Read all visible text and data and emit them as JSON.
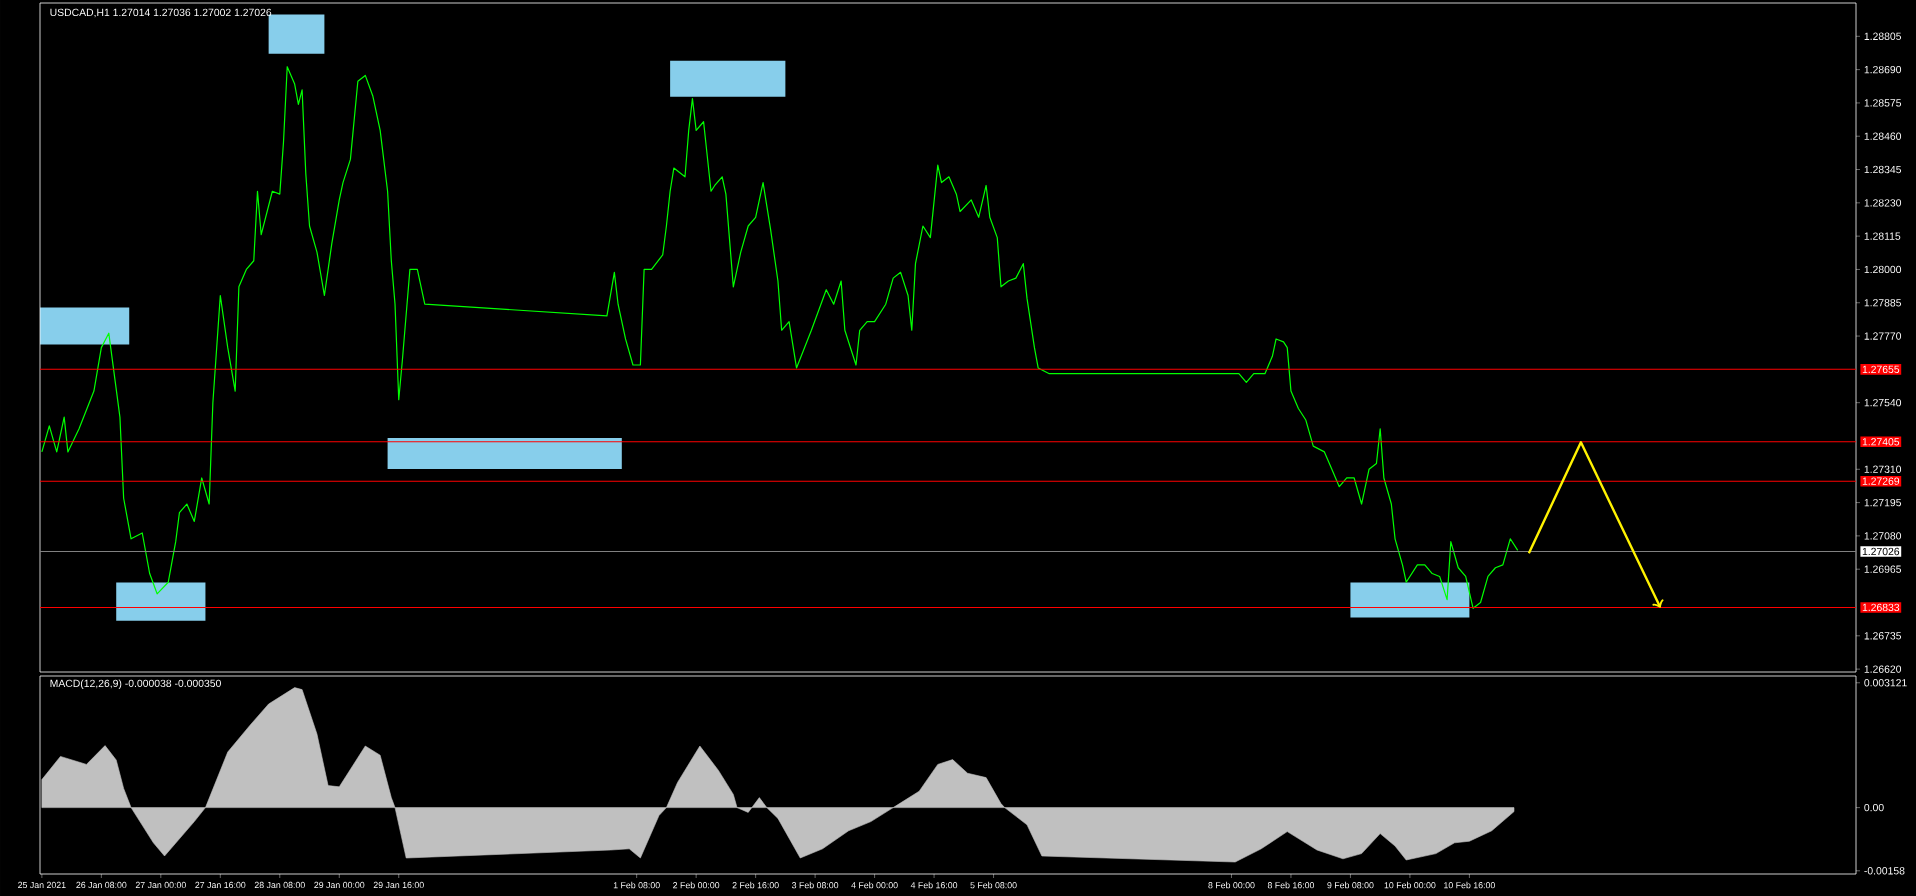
{
  "chart_data": [
    {
      "type": "line",
      "title": "USDCAD,H1  1.27014 1.27036 1.27002 1.27026",
      "color": "#00ff00",
      "tick_labels": "y",
      "xlim": [
        "2021-01-25T15:30",
        "2021-02-15T00:00"
      ],
      "ylim": [
        1.2661,
        1.2892
      ],
      "x": [
        "2021-01-25T16:00",
        "2021-01-25T18:00",
        "2021-01-25T20:00",
        "2021-01-25T22:00",
        "2021-01-25T23:00",
        "2021-01-26T02:00",
        "2021-01-26T06:00",
        "2021-01-26T08:00",
        "2021-01-26T10:00",
        "2021-01-26T13:00",
        "2021-01-26T14:00",
        "2021-01-26T16:00",
        "2021-01-26T19:00",
        "2021-01-26T21:00",
        "2021-01-26T23:00",
        "2021-01-27T02:00",
        "2021-01-27T04:00",
        "2021-01-27T05:00",
        "2021-01-27T07:00",
        "2021-01-27T09:00",
        "2021-01-27T11:00",
        "2021-01-27T13:00",
        "2021-01-27T14:00",
        "2021-01-27T16:00",
        "2021-01-27T18:00",
        "2021-01-27T20:00",
        "2021-01-27T21:00",
        "2021-01-27T23:00",
        "2021-01-28T01:00",
        "2021-01-28T02:00",
        "2021-01-28T03:00",
        "2021-01-28T06:00",
        "2021-01-28T08:00",
        "2021-01-28T09:00",
        "2021-01-28T10:00",
        "2021-01-28T12:00",
        "2021-01-28T13:00",
        "2021-01-28T14:00",
        "2021-01-28T15:00",
        "2021-01-28T16:00",
        "2021-01-28T18:00",
        "2021-01-28T20:00",
        "2021-01-28T22:00",
        "2021-01-29T00:00",
        "2021-01-29T01:00",
        "2021-01-29T03:00",
        "2021-01-29T05:00",
        "2021-01-29T07:00",
        "2021-01-29T09:00",
        "2021-01-29T11:00",
        "2021-01-29T13:00",
        "2021-01-29T14:00",
        "2021-01-29T15:00",
        "2021-01-29T16:00",
        "2021-01-29T17:00",
        "2021-01-29T19:00",
        "2021-01-29T21:00",
        "2021-01-29T23:00",
        "2021-02-01T00:00",
        "2021-02-01T02:00",
        "2021-02-01T03:00",
        "2021-02-01T05:00",
        "2021-02-01T07:00",
        "2021-02-01T09:00",
        "2021-02-01T10:00",
        "2021-02-01T12:00",
        "2021-02-01T15:00",
        "2021-02-01T16:00",
        "2021-02-01T17:00",
        "2021-02-01T18:00",
        "2021-02-01T21:00",
        "2021-02-01T22:00",
        "2021-02-01T23:00",
        "2021-02-02T00:00",
        "2021-02-02T02:00",
        "2021-02-02T04:00",
        "2021-02-02T05:00",
        "2021-02-02T07:00",
        "2021-02-02T08:00",
        "2021-02-02T10:00",
        "2021-02-02T12:00",
        "2021-02-02T14:00",
        "2021-02-02T16:00",
        "2021-02-02T18:00",
        "2021-02-02T20:00",
        "2021-02-02T22:00",
        "2021-02-02T23:00",
        "2021-02-03T01:00",
        "2021-02-03T03:00",
        "2021-02-03T07:00",
        "2021-02-03T11:00",
        "2021-02-03T13:00",
        "2021-02-03T15:00",
        "2021-02-03T16:00",
        "2021-02-03T19:00",
        "2021-02-03T20:00",
        "2021-02-03T22:00",
        "2021-02-04T00:00",
        "2021-02-04T03:00",
        "2021-02-04T05:00",
        "2021-02-04T07:00",
        "2021-02-04T09:00",
        "2021-02-04T10:00",
        "2021-02-04T11:00",
        "2021-02-04T13:00",
        "2021-02-04T15:00",
        "2021-02-04T17:00",
        "2021-02-04T18:00",
        "2021-02-04T20:00",
        "2021-02-04T22:00",
        "2021-02-04T23:00",
        "2021-02-05T02:00",
        "2021-02-05T04:00",
        "2021-02-05T06:00",
        "2021-02-05T07:00",
        "2021-02-05T09:00",
        "2021-02-05T10:00",
        "2021-02-05T12:00",
        "2021-02-05T14:00",
        "2021-02-05T16:00",
        "2021-02-05T17:00",
        "2021-02-05T19:00",
        "2021-02-05T20:00",
        "2021-02-05T23:00",
        "2021-02-08T02:00",
        "2021-02-08T04:00",
        "2021-02-08T06:00",
        "2021-02-08T09:00",
        "2021-02-08T11:00",
        "2021-02-08T12:00",
        "2021-02-08T14:00",
        "2021-02-08T15:00",
        "2021-02-08T16:00",
        "2021-02-08T18:00",
        "2021-02-08T20:00",
        "2021-02-08T22:00",
        "2021-02-09T01:00",
        "2021-02-09T03:00",
        "2021-02-09T05:00",
        "2021-02-09T07:00",
        "2021-02-09T09:00",
        "2021-02-09T11:00",
        "2021-02-09T13:00",
        "2021-02-09T15:00",
        "2021-02-09T16:00",
        "2021-02-09T17:00",
        "2021-02-09T19:00",
        "2021-02-09T20:00",
        "2021-02-09T22:00",
        "2021-02-09T23:00",
        "2021-02-10T02:00",
        "2021-02-10T04:00",
        "2021-02-10T06:00",
        "2021-02-10T08:00",
        "2021-02-10T10:00",
        "2021-02-10T11:00",
        "2021-02-10T13:00",
        "2021-02-10T15:00",
        "2021-02-10T17:00",
        "2021-02-10T19:00",
        "2021-02-10T21:00",
        "2021-02-10T23:00",
        "2021-02-11T01:00",
        "2021-02-11T03:00",
        "2021-02-11T05:00"
      ],
      "values": [
        1.2737,
        1.2746,
        1.2737,
        1.2749,
        1.2737,
        1.2745,
        1.2758,
        1.2773,
        1.2778,
        1.2749,
        1.2721,
        1.2707,
        1.2709,
        1.2695,
        1.2688,
        1.2692,
        1.2706,
        1.2716,
        1.2719,
        1.2713,
        1.2728,
        1.2719,
        1.2754,
        1.2791,
        1.2773,
        1.2758,
        1.2794,
        1.28,
        1.2803,
        1.2827,
        1.2812,
        1.2827,
        1.2826,
        1.2844,
        1.287,
        1.2864,
        1.2857,
        1.2862,
        1.2833,
        1.2815,
        1.2806,
        1.2791,
        1.2809,
        1.2824,
        1.283,
        1.2838,
        1.2865,
        1.2867,
        1.286,
        1.2848,
        1.2827,
        1.2803,
        1.2788,
        1.2755,
        1.2769,
        1.28,
        1.28,
        1.2788,
        1.2784,
        1.2799,
        1.2788,
        1.2776,
        1.2767,
        1.2767,
        1.28,
        1.28,
        1.2805,
        1.2815,
        1.2827,
        1.2835,
        1.2832,
        1.2848,
        1.2859,
        1.2848,
        1.2851,
        1.2827,
        1.2829,
        1.2832,
        1.2826,
        1.2794,
        1.2806,
        1.2815,
        1.2818,
        1.283,
        1.2814,
        1.2796,
        1.2779,
        1.2782,
        1.2766,
        1.2779,
        1.2793,
        1.2788,
        1.2796,
        1.2779,
        1.2767,
        1.2779,
        1.2782,
        1.2782,
        1.2788,
        1.2797,
        1.2799,
        1.2791,
        1.2779,
        1.2802,
        1.2815,
        1.2811,
        1.2836,
        1.283,
        1.2832,
        1.2826,
        1.282,
        1.2824,
        1.2818,
        1.2829,
        1.2818,
        1.2811,
        1.2794,
        1.2796,
        1.2797,
        1.2802,
        1.279,
        1.2773,
        1.2766,
        1.2764,
        1.2764,
        1.2761,
        1.2764,
        1.2764,
        1.277,
        1.2776,
        1.2775,
        1.2773,
        1.2758,
        1.2752,
        1.2748,
        1.2739,
        1.2737,
        1.2731,
        1.2725,
        1.2728,
        1.2728,
        1.2719,
        1.2731,
        1.2733,
        1.2745,
        1.2728,
        1.2719,
        1.2707,
        1.2698,
        1.2692,
        1.2698,
        1.2698,
        1.2695,
        1.2694,
        1.2686,
        1.2706,
        1.2697,
        1.2694,
        1.2683,
        1.2685,
        1.2694,
        1.2697,
        1.2698,
        1.2707,
        1.2703
      ],
      "yticks": [
        {
          "value": 1.28805,
          "label": "1.28805"
        },
        {
          "value": 1.2869,
          "label": "1.28690"
        },
        {
          "value": 1.28575,
          "label": "1.28575"
        },
        {
          "value": 1.2846,
          "label": "1.28460"
        },
        {
          "value": 1.28345,
          "label": "1.28345"
        },
        {
          "value": 1.2823,
          "label": "1.28230"
        },
        {
          "value": 1.28115,
          "label": "1.28115"
        },
        {
          "value": 1.28,
          "label": "1.28000"
        },
        {
          "value": 1.27885,
          "label": "1.27885"
        },
        {
          "value": 1.2777,
          "label": "1.27770"
        },
        {
          "value": 1.2754,
          "label": "1.27540"
        },
        {
          "value": 1.2731,
          "label": "1.27310"
        },
        {
          "value": 1.27195,
          "label": "1.27195"
        },
        {
          "value": 1.2708,
          "label": "1.27080"
        },
        {
          "value": 1.26965,
          "label": "1.26965"
        },
        {
          "value": 1.26735,
          "label": "1.26735"
        },
        {
          "value": 1.2662,
          "label": "1.26620"
        }
      ],
      "ref_lines": [
        {
          "axis": "y",
          "value": 1.27655,
          "label": "1.27655",
          "color": "#ff0000"
        },
        {
          "axis": "y",
          "value": 1.27405,
          "label": "1.27405",
          "color": "#ff0000"
        },
        {
          "axis": "y",
          "value": 1.27269,
          "label": "1.27269",
          "color": "#ff0000"
        },
        {
          "axis": "y",
          "value": 1.26833,
          "label": "1.26833",
          "color": "#ff0000"
        },
        {
          "axis": "y",
          "value": 1.27026,
          "label": "1.27026",
          "color": "#808080"
        }
      ]
    },
    {
      "type": "area",
      "title": "MACD(12,26,9) -0.000038 -0.000350",
      "color": "#c0c0c0",
      "xlim": [
        "2021-01-25T15:30",
        "2021-02-15T00:00"
      ],
      "ylim": [
        -0.00166,
        0.00329
      ],
      "x": [
        "2021-01-25T16:00",
        "2021-01-25T21:00",
        "2021-01-26T04:00",
        "2021-01-26T09:00",
        "2021-01-26T12:00",
        "2021-01-26T14:00",
        "2021-01-26T16:00",
        "2021-01-26T22:00",
        "2021-01-27T01:00",
        "2021-01-27T09:00",
        "2021-01-27T12:00",
        "2021-01-27T18:00",
        "2021-01-28T00:00",
        "2021-01-28T05:00",
        "2021-01-28T12:00",
        "2021-01-28T14:00",
        "2021-01-28T18:00",
        "2021-01-28T21:00",
        "2021-01-29T00:00",
        "2021-01-29T07:00",
        "2021-01-29T11:00",
        "2021-01-29T14:00",
        "2021-01-29T15:00",
        "2021-01-29T18:00",
        "2021-02-01T01:00",
        "2021-02-01T06:00",
        "2021-02-01T09:00",
        "2021-02-01T14:00",
        "2021-02-01T16:00",
        "2021-02-01T19:00",
        "2021-02-02T01:00",
        "2021-02-02T06:00",
        "2021-02-02T10:00",
        "2021-02-02T11:00",
        "2021-02-02T14:00",
        "2021-02-02T17:00",
        "2021-02-02T19:00",
        "2021-02-02T22:00",
        "2021-02-03T04:00",
        "2021-02-03T10:00",
        "2021-02-03T17:00",
        "2021-02-03T23:00",
        "2021-02-04T05:00",
        "2021-02-04T12:00",
        "2021-02-04T17:00",
        "2021-02-04T21:00",
        "2021-02-05T01:00",
        "2021-02-05T06:00",
        "2021-02-05T10:00",
        "2021-02-05T11:00",
        "2021-02-05T17:00",
        "2021-02-05T21:00",
        "2021-02-08T01:00",
        "2021-02-08T08:00",
        "2021-02-08T15:00",
        "2021-02-08T23:00",
        "2021-02-09T06:00",
        "2021-02-09T11:00",
        "2021-02-09T16:00",
        "2021-02-09T20:00",
        "2021-02-09T23:00",
        "2021-02-10T07:00",
        "2021-02-10T12:00",
        "2021-02-10T16:00",
        "2021-02-10T22:00",
        "2021-02-11T04:00"
      ],
      "values": [
        0.0007,
        0.00128,
        0.00108,
        0.00155,
        0.00119,
        0.00048,
        0,
        -0.00088,
        -0.00121,
        -0.00035,
        0,
        0.00139,
        0.00206,
        0.00259,
        0.003,
        0.00295,
        0.00184,
        0.00055,
        0.00052,
        0.00154,
        0.00131,
        0.00025,
        0,
        -0.00126,
        -0.00106,
        -0.00103,
        -0.00126,
        -0.0002,
        0,
        0.00063,
        0.00154,
        0.00093,
        0.00033,
        0,
        -0.00012,
        0.00025,
        0,
        -0.00027,
        -0.00126,
        -0.00103,
        -0.00058,
        -0.00035,
        0,
        0.00041,
        0.00108,
        0.0012,
        0.00086,
        0.00075,
        0.0001,
        0,
        -0.00043,
        -0.00121,
        -0.00136,
        -0.00103,
        -0.0006,
        -0.00106,
        -0.00128,
        -0.00115,
        -0.00065,
        -0.00096,
        -0.00131,
        -0.00115,
        -0.00088,
        -0.00084,
        -0.00058,
        -0.0001
      ],
      "yticks": [
        {
          "value": 0.003121,
          "label": "0.003121"
        },
        {
          "value": 0,
          "label": "0.00"
        },
        {
          "value": -0.00158,
          "label": "-0.00158"
        }
      ],
      "xticks": [
        {
          "value": "2021-01-25T16:00",
          "label": "25 Jan 2021"
        },
        {
          "value": "2021-01-26T08:00",
          "label": "26 Jan 08:00"
        },
        {
          "value": "2021-01-27T00:00",
          "label": "27 Jan 00:00"
        },
        {
          "value": "2021-01-27T16:00",
          "label": "27 Jan 16:00"
        },
        {
          "value": "2021-01-28T08:00",
          "label": "28 Jan 08:00"
        },
        {
          "value": "2021-01-29T00:00",
          "label": "29 Jan 00:00"
        },
        {
          "value": "2021-01-29T16:00",
          "label": "29 Jan 16:00"
        },
        {
          "value": "2021-02-01T08:00",
          "label": "1 Feb 08:00"
        },
        {
          "value": "2021-02-02T00:00",
          "label": "2 Feb 00:00"
        },
        {
          "value": "2021-02-02T16:00",
          "label": "2 Feb 16:00"
        },
        {
          "value": "2021-02-03T08:00",
          "label": "3 Feb 08:00"
        },
        {
          "value": "2021-02-04T00:00",
          "label": "4 Feb 00:00"
        },
        {
          "value": "2021-02-04T16:00",
          "label": "4 Feb 16:00"
        },
        {
          "value": "2021-02-05T08:00",
          "label": "5 Feb 08:00"
        },
        {
          "value": "2021-02-08T00:00",
          "label": "8 Feb 00:00"
        },
        {
          "value": "2021-02-08T16:00",
          "label": "8 Feb 16:00"
        },
        {
          "value": "2021-02-09T08:00",
          "label": "9 Feb 08:00"
        },
        {
          "value": "2021-02-10T00:00",
          "label": "10 Feb 00:00"
        },
        {
          "value": "2021-02-10T16:00",
          "label": "10 Feb 16:00"
        }
      ]
    }
  ]
}
